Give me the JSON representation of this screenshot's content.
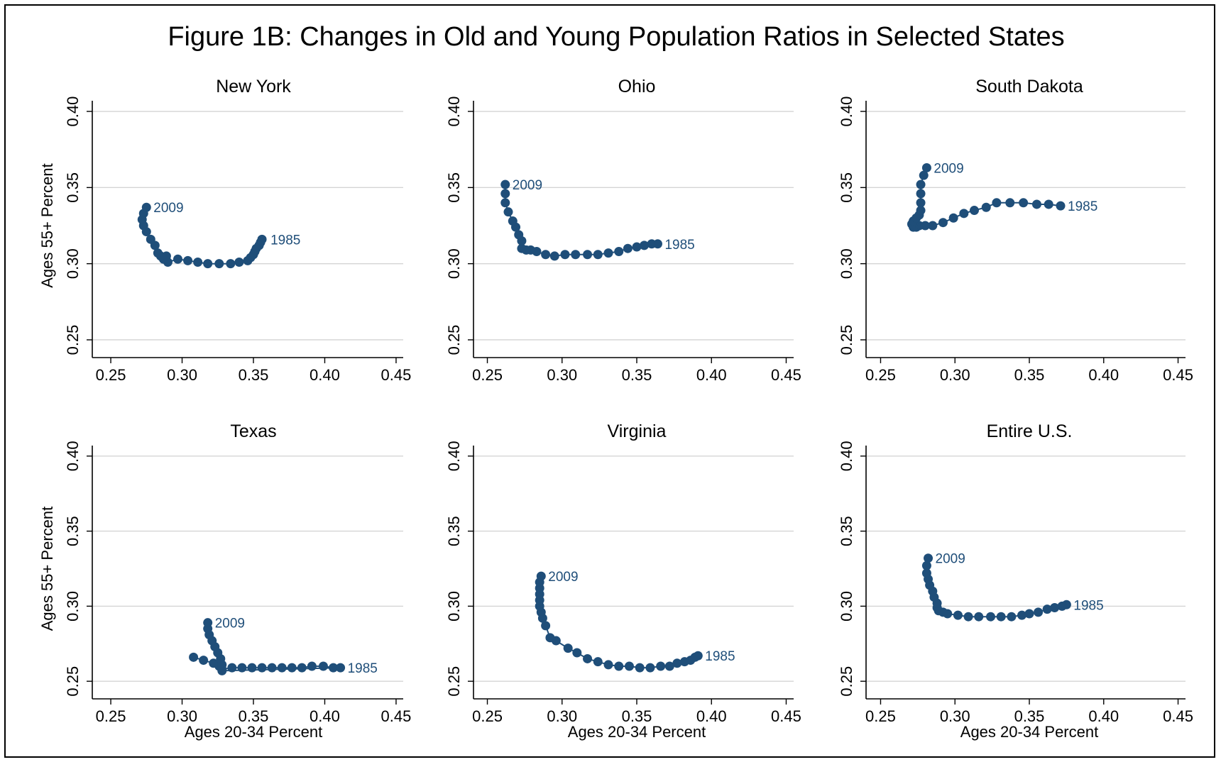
{
  "figure": {
    "title": "Figure 1B: Changes in Old and Young Population Ratios in Selected States"
  },
  "style": {
    "marker_color": "#1f4e79",
    "label_color": "#1f4e79",
    "grid_color": "#d4d4d4",
    "axis_color": "#000000",
    "background": "#ffffff"
  },
  "chart_data": [
    {
      "type": "scatter",
      "title": "New York",
      "xlabel": "",
      "ylabel": "Ages 55+ Percent",
      "xlim": [
        0.245,
        0.455
      ],
      "ylim": [
        0.243,
        0.407
      ],
      "xticks": [
        "0.25",
        "0.30",
        "0.35",
        "0.40",
        "0.45"
      ],
      "yticks": [
        "0.25",
        "0.30",
        "0.35",
        "0.40"
      ],
      "grid": true,
      "connected": true,
      "annotations": [
        {
          "text": "1985",
          "x": 0.357,
          "y": 0.316,
          "position": "right"
        },
        {
          "text": "2009",
          "x": 0.275,
          "y": 0.337,
          "position": "right"
        }
      ],
      "points": [
        [
          0.356,
          0.316
        ],
        [
          0.355,
          0.314
        ],
        [
          0.354,
          0.312
        ],
        [
          0.352,
          0.31
        ],
        [
          0.351,
          0.308
        ],
        [
          0.35,
          0.306
        ],
        [
          0.348,
          0.304
        ],
        [
          0.346,
          0.302
        ],
        [
          0.34,
          0.301
        ],
        [
          0.334,
          0.3
        ],
        [
          0.326,
          0.3
        ],
        [
          0.318,
          0.3
        ],
        [
          0.311,
          0.301
        ],
        [
          0.304,
          0.302
        ],
        [
          0.297,
          0.303
        ],
        [
          0.29,
          0.301
        ],
        [
          0.287,
          0.303
        ],
        [
          0.289,
          0.305
        ],
        [
          0.285,
          0.305
        ],
        [
          0.283,
          0.307
        ],
        [
          0.281,
          0.312
        ],
        [
          0.278,
          0.316
        ],
        [
          0.275,
          0.321
        ],
        [
          0.273,
          0.325
        ],
        [
          0.272,
          0.329
        ],
        [
          0.273,
          0.333
        ],
        [
          0.275,
          0.337
        ]
      ]
    },
    {
      "type": "scatter",
      "title": "Ohio",
      "xlabel": "",
      "ylabel": "",
      "xlim": [
        0.245,
        0.455
      ],
      "ylim": [
        0.243,
        0.407
      ],
      "xticks": [
        "0.25",
        "0.30",
        "0.35",
        "0.40",
        "0.45"
      ],
      "yticks": [
        "0.25",
        "0.30",
        "0.35",
        "0.40"
      ],
      "grid": true,
      "connected": true,
      "annotations": [
        {
          "text": "1985",
          "x": 0.364,
          "y": 0.313,
          "position": "right"
        },
        {
          "text": "2009",
          "x": 0.262,
          "y": 0.352,
          "position": "right"
        }
      ],
      "points": [
        [
          0.364,
          0.313
        ],
        [
          0.36,
          0.313
        ],
        [
          0.355,
          0.312
        ],
        [
          0.35,
          0.311
        ],
        [
          0.344,
          0.31
        ],
        [
          0.338,
          0.308
        ],
        [
          0.331,
          0.307
        ],
        [
          0.324,
          0.306
        ],
        [
          0.317,
          0.306
        ],
        [
          0.309,
          0.306
        ],
        [
          0.302,
          0.306
        ],
        [
          0.295,
          0.305
        ],
        [
          0.289,
          0.306
        ],
        [
          0.283,
          0.308
        ],
        [
          0.279,
          0.309
        ],
        [
          0.276,
          0.309
        ],
        [
          0.273,
          0.31
        ],
        [
          0.273,
          0.315
        ],
        [
          0.271,
          0.319
        ],
        [
          0.269,
          0.324
        ],
        [
          0.267,
          0.328
        ],
        [
          0.264,
          0.334
        ],
        [
          0.262,
          0.34
        ],
        [
          0.262,
          0.346
        ],
        [
          0.262,
          0.352
        ]
      ]
    },
    {
      "type": "scatter",
      "title": "South Dakota",
      "xlabel": "",
      "ylabel": "",
      "xlim": [
        0.245,
        0.455
      ],
      "ylim": [
        0.243,
        0.407
      ],
      "xticks": [
        "0.25",
        "0.30",
        "0.35",
        "0.40",
        "0.45"
      ],
      "yticks": [
        "0.25",
        "0.30",
        "0.35",
        "0.40"
      ],
      "grid": true,
      "connected": true,
      "annotations": [
        {
          "text": "1985",
          "x": 0.371,
          "y": 0.338,
          "position": "right"
        },
        {
          "text": "2009",
          "x": 0.281,
          "y": 0.363,
          "position": "right"
        }
      ],
      "points": [
        [
          0.371,
          0.338
        ],
        [
          0.363,
          0.339
        ],
        [
          0.355,
          0.339
        ],
        [
          0.346,
          0.34
        ],
        [
          0.337,
          0.34
        ],
        [
          0.328,
          0.34
        ],
        [
          0.321,
          0.337
        ],
        [
          0.313,
          0.335
        ],
        [
          0.306,
          0.333
        ],
        [
          0.299,
          0.33
        ],
        [
          0.292,
          0.327
        ],
        [
          0.285,
          0.325
        ],
        [
          0.28,
          0.325
        ],
        [
          0.276,
          0.325
        ],
        [
          0.274,
          0.324
        ],
        [
          0.272,
          0.324
        ],
        [
          0.271,
          0.326
        ],
        [
          0.272,
          0.328
        ],
        [
          0.274,
          0.33
        ],
        [
          0.276,
          0.332
        ],
        [
          0.277,
          0.335
        ],
        [
          0.277,
          0.34
        ],
        [
          0.277,
          0.346
        ],
        [
          0.277,
          0.352
        ],
        [
          0.279,
          0.358
        ],
        [
          0.281,
          0.363
        ]
      ]
    },
    {
      "type": "scatter",
      "title": "Texas",
      "xlabel": "Ages 20-34 Percent",
      "ylabel": "Ages 55+ Percent",
      "xlim": [
        0.245,
        0.455
      ],
      "ylim": [
        0.243,
        0.407
      ],
      "xticks": [
        "0.25",
        "0.30",
        "0.35",
        "0.40",
        "0.45"
      ],
      "yticks": [
        "0.25",
        "0.30",
        "0.35",
        "0.40"
      ],
      "grid": true,
      "connected": true,
      "annotations": [
        {
          "text": "1985",
          "x": 0.411,
          "y": 0.259,
          "position": "right"
        },
        {
          "text": "2009",
          "x": 0.318,
          "y": 0.289,
          "position": "right"
        }
      ],
      "points": [
        [
          0.308,
          0.266
        ],
        [
          0.315,
          0.264
        ],
        [
          0.322,
          0.262
        ],
        [
          0.326,
          0.26
        ],
        [
          0.328,
          0.258
        ],
        [
          0.335,
          0.259
        ],
        [
          0.342,
          0.259
        ],
        [
          0.349,
          0.259
        ],
        [
          0.356,
          0.259
        ],
        [
          0.363,
          0.259
        ],
        [
          0.37,
          0.259
        ],
        [
          0.377,
          0.259
        ],
        [
          0.384,
          0.259
        ],
        [
          0.391,
          0.26
        ],
        [
          0.399,
          0.26
        ],
        [
          0.406,
          0.259
        ],
        [
          0.411,
          0.259
        ],
        [
          0.328,
          0.257
        ],
        [
          0.328,
          0.261
        ],
        [
          0.327,
          0.265
        ],
        [
          0.325,
          0.269
        ],
        [
          0.323,
          0.273
        ],
        [
          0.321,
          0.277
        ],
        [
          0.319,
          0.281
        ],
        [
          0.318,
          0.285
        ],
        [
          0.318,
          0.289
        ]
      ]
    },
    {
      "type": "scatter",
      "title": "Virginia",
      "xlabel": "Ages 20-34 Percent",
      "ylabel": "",
      "xlim": [
        0.245,
        0.455
      ],
      "ylim": [
        0.243,
        0.407
      ],
      "xticks": [
        "0.25",
        "0.30",
        "0.35",
        "0.40",
        "0.45"
      ],
      "yticks": [
        "0.25",
        "0.30",
        "0.35",
        "0.40"
      ],
      "grid": true,
      "connected": true,
      "annotations": [
        {
          "text": "1985",
          "x": 0.391,
          "y": 0.267,
          "position": "right"
        },
        {
          "text": "2009",
          "x": 0.286,
          "y": 0.32,
          "position": "right"
        }
      ],
      "points": [
        [
          0.391,
          0.267
        ],
        [
          0.389,
          0.266
        ],
        [
          0.386,
          0.264
        ],
        [
          0.382,
          0.263
        ],
        [
          0.377,
          0.262
        ],
        [
          0.372,
          0.26
        ],
        [
          0.366,
          0.26
        ],
        [
          0.359,
          0.259
        ],
        [
          0.352,
          0.259
        ],
        [
          0.345,
          0.26
        ],
        [
          0.338,
          0.26
        ],
        [
          0.331,
          0.261
        ],
        [
          0.324,
          0.263
        ],
        [
          0.317,
          0.265
        ],
        [
          0.31,
          0.269
        ],
        [
          0.304,
          0.272
        ],
        [
          0.296,
          0.277
        ],
        [
          0.292,
          0.279
        ],
        [
          0.289,
          0.287
        ],
        [
          0.287,
          0.292
        ],
        [
          0.286,
          0.296
        ],
        [
          0.285,
          0.3
        ],
        [
          0.285,
          0.304
        ],
        [
          0.285,
          0.308
        ],
        [
          0.285,
          0.312
        ],
        [
          0.285,
          0.316
        ],
        [
          0.286,
          0.32
        ]
      ]
    },
    {
      "type": "scatter",
      "title": "Entire U.S.",
      "xlabel": "Ages 20-34 Percent",
      "ylabel": "",
      "xlim": [
        0.245,
        0.455
      ],
      "ylim": [
        0.243,
        0.407
      ],
      "xticks": [
        "0.25",
        "0.30",
        "0.35",
        "0.40",
        "0.45"
      ],
      "yticks": [
        "0.25",
        "0.30",
        "0.35",
        "0.40"
      ],
      "grid": true,
      "connected": true,
      "annotations": [
        {
          "text": "1985",
          "x": 0.375,
          "y": 0.301,
          "position": "right"
        },
        {
          "text": "2009",
          "x": 0.282,
          "y": 0.332,
          "position": "right"
        }
      ],
      "points": [
        [
          0.375,
          0.301
        ],
        [
          0.372,
          0.3
        ],
        [
          0.367,
          0.299
        ],
        [
          0.362,
          0.298
        ],
        [
          0.356,
          0.296
        ],
        [
          0.35,
          0.295
        ],
        [
          0.345,
          0.294
        ],
        [
          0.338,
          0.293
        ],
        [
          0.331,
          0.293
        ],
        [
          0.324,
          0.293
        ],
        [
          0.316,
          0.293
        ],
        [
          0.309,
          0.293
        ],
        [
          0.302,
          0.294
        ],
        [
          0.295,
          0.295
        ],
        [
          0.292,
          0.296
        ],
        [
          0.289,
          0.297
        ],
        [
          0.288,
          0.299
        ],
        [
          0.288,
          0.302
        ],
        [
          0.286,
          0.306
        ],
        [
          0.285,
          0.31
        ],
        [
          0.283,
          0.314
        ],
        [
          0.282,
          0.318
        ],
        [
          0.281,
          0.322
        ],
        [
          0.281,
          0.327
        ],
        [
          0.282,
          0.332
        ]
      ]
    }
  ]
}
